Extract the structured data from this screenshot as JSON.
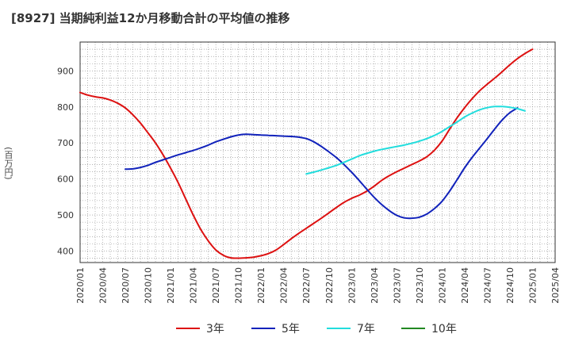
{
  "header": {
    "title": "[8927]  当期純利益12か月移動合計の平均値の推移"
  },
  "chart_data": {
    "type": "line",
    "title": "[8927]  当期純利益12か月移動合計の平均値の推移",
    "xlabel": "",
    "ylabel": "(百万円)",
    "x_ticks": [
      "2020/01",
      "2020/04",
      "2020/07",
      "2020/10",
      "2021/01",
      "2021/04",
      "2021/07",
      "2021/10",
      "2022/01",
      "2022/04",
      "2022/07",
      "2022/10",
      "2023/01",
      "2023/04",
      "2023/07",
      "2023/10",
      "2024/01",
      "2024/04",
      "2024/07",
      "2024/10",
      "2025/01",
      "2025/04"
    ],
    "y_ticks": [
      400,
      500,
      600,
      700,
      800,
      900
    ],
    "xlim": [
      "2020/01",
      "2025/04"
    ],
    "ylim": [
      368,
      980
    ],
    "grid": true,
    "legend_position": "bottom",
    "series": [
      {
        "name": "3年",
        "color": "#dd1111",
        "points": [
          [
            "2020/01",
            840
          ],
          [
            "2020/02",
            833
          ],
          [
            "2020/03",
            828
          ],
          [
            "2020/04",
            825
          ],
          [
            "2020/05",
            819
          ],
          [
            "2020/06",
            810
          ],
          [
            "2020/07",
            797
          ],
          [
            "2020/08",
            778
          ],
          [
            "2020/09",
            755
          ],
          [
            "2020/10",
            728
          ],
          [
            "2020/11",
            700
          ],
          [
            "2020/12",
            667
          ],
          [
            "2021/01",
            630
          ],
          [
            "2021/02",
            590
          ],
          [
            "2021/03",
            545
          ],
          [
            "2021/04",
            500
          ],
          [
            "2021/05",
            460
          ],
          [
            "2021/06",
            428
          ],
          [
            "2021/07",
            403
          ],
          [
            "2021/08",
            388
          ],
          [
            "2021/09",
            381
          ],
          [
            "2021/10",
            380
          ],
          [
            "2021/11",
            381
          ],
          [
            "2021/12",
            383
          ],
          [
            "2022/01",
            387
          ],
          [
            "2022/02",
            393
          ],
          [
            "2022/03",
            403
          ],
          [
            "2022/04",
            418
          ],
          [
            "2022/05",
            434
          ],
          [
            "2022/06",
            449
          ],
          [
            "2022/07",
            463
          ],
          [
            "2022/08",
            477
          ],
          [
            "2022/09",
            491
          ],
          [
            "2022/10",
            506
          ],
          [
            "2022/11",
            521
          ],
          [
            "2022/12",
            535
          ],
          [
            "2023/01",
            546
          ],
          [
            "2023/02",
            555
          ],
          [
            "2023/03",
            566
          ],
          [
            "2023/04",
            580
          ],
          [
            "2023/05",
            596
          ],
          [
            "2023/06",
            609
          ],
          [
            "2023/07",
            620
          ],
          [
            "2023/08",
            630
          ],
          [
            "2023/09",
            640
          ],
          [
            "2023/10",
            650
          ],
          [
            "2023/11",
            662
          ],
          [
            "2023/12",
            680
          ],
          [
            "2024/01",
            705
          ],
          [
            "2024/02",
            738
          ],
          [
            "2024/03",
            770
          ],
          [
            "2024/04",
            798
          ],
          [
            "2024/05",
            823
          ],
          [
            "2024/06",
            845
          ],
          [
            "2024/07",
            863
          ],
          [
            "2024/08",
            880
          ],
          [
            "2024/09",
            898
          ],
          [
            "2024/10",
            917
          ],
          [
            "2024/11",
            934
          ],
          [
            "2024/12",
            948
          ],
          [
            "2025/01",
            960
          ]
        ]
      },
      {
        "name": "5年",
        "color": "#1122bb",
        "points": [
          [
            "2020/07",
            627
          ],
          [
            "2020/08",
            628
          ],
          [
            "2020/09",
            632
          ],
          [
            "2020/10",
            638
          ],
          [
            "2020/11",
            646
          ],
          [
            "2020/12",
            653
          ],
          [
            "2021/01",
            660
          ],
          [
            "2021/02",
            667
          ],
          [
            "2021/03",
            673
          ],
          [
            "2021/04",
            679
          ],
          [
            "2021/05",
            686
          ],
          [
            "2021/06",
            694
          ],
          [
            "2021/07",
            703
          ],
          [
            "2021/08",
            710
          ],
          [
            "2021/09",
            717
          ],
          [
            "2021/10",
            722
          ],
          [
            "2021/11",
            724
          ],
          [
            "2021/12",
            723
          ],
          [
            "2022/01",
            722
          ],
          [
            "2022/02",
            721
          ],
          [
            "2022/03",
            720
          ],
          [
            "2022/04",
            719
          ],
          [
            "2022/05",
            718
          ],
          [
            "2022/06",
            716
          ],
          [
            "2022/07",
            712
          ],
          [
            "2022/08",
            703
          ],
          [
            "2022/09",
            690
          ],
          [
            "2022/10",
            675
          ],
          [
            "2022/11",
            659
          ],
          [
            "2022/12",
            640
          ],
          [
            "2023/01",
            619
          ],
          [
            "2023/02",
            596
          ],
          [
            "2023/03",
            572
          ],
          [
            "2023/04",
            549
          ],
          [
            "2023/05",
            529
          ],
          [
            "2023/06",
            512
          ],
          [
            "2023/07",
            499
          ],
          [
            "2023/08",
            492
          ],
          [
            "2023/09",
            491
          ],
          [
            "2023/10",
            494
          ],
          [
            "2023/11",
            503
          ],
          [
            "2023/12",
            518
          ],
          [
            "2024/01",
            538
          ],
          [
            "2024/02",
            566
          ],
          [
            "2024/03",
            598
          ],
          [
            "2024/04",
            631
          ],
          [
            "2024/05",
            660
          ],
          [
            "2024/06",
            686
          ],
          [
            "2024/07",
            712
          ],
          [
            "2024/08",
            739
          ],
          [
            "2024/09",
            764
          ],
          [
            "2024/10",
            784
          ],
          [
            "2024/11",
            797
          ]
        ]
      },
      {
        "name": "7年",
        "color": "#22dddd",
        "points": [
          [
            "2022/07",
            614
          ],
          [
            "2022/08",
            619
          ],
          [
            "2022/09",
            625
          ],
          [
            "2022/10",
            631
          ],
          [
            "2022/11",
            638
          ],
          [
            "2022/12",
            646
          ],
          [
            "2023/01",
            655
          ],
          [
            "2023/02",
            664
          ],
          [
            "2023/03",
            671
          ],
          [
            "2023/04",
            677
          ],
          [
            "2023/05",
            682
          ],
          [
            "2023/06",
            686
          ],
          [
            "2023/07",
            690
          ],
          [
            "2023/08",
            694
          ],
          [
            "2023/09",
            699
          ],
          [
            "2023/10",
            705
          ],
          [
            "2023/11",
            712
          ],
          [
            "2023/12",
            721
          ],
          [
            "2024/01",
            732
          ],
          [
            "2024/02",
            745
          ],
          [
            "2024/03",
            758
          ],
          [
            "2024/04",
            772
          ],
          [
            "2024/05",
            783
          ],
          [
            "2024/06",
            792
          ],
          [
            "2024/07",
            798
          ],
          [
            "2024/08",
            801
          ],
          [
            "2024/09",
            801
          ],
          [
            "2024/10",
            799
          ],
          [
            "2024/11",
            795
          ],
          [
            "2024/12",
            789
          ]
        ]
      },
      {
        "name": "10年",
        "color": "#228822",
        "points": []
      }
    ]
  }
}
